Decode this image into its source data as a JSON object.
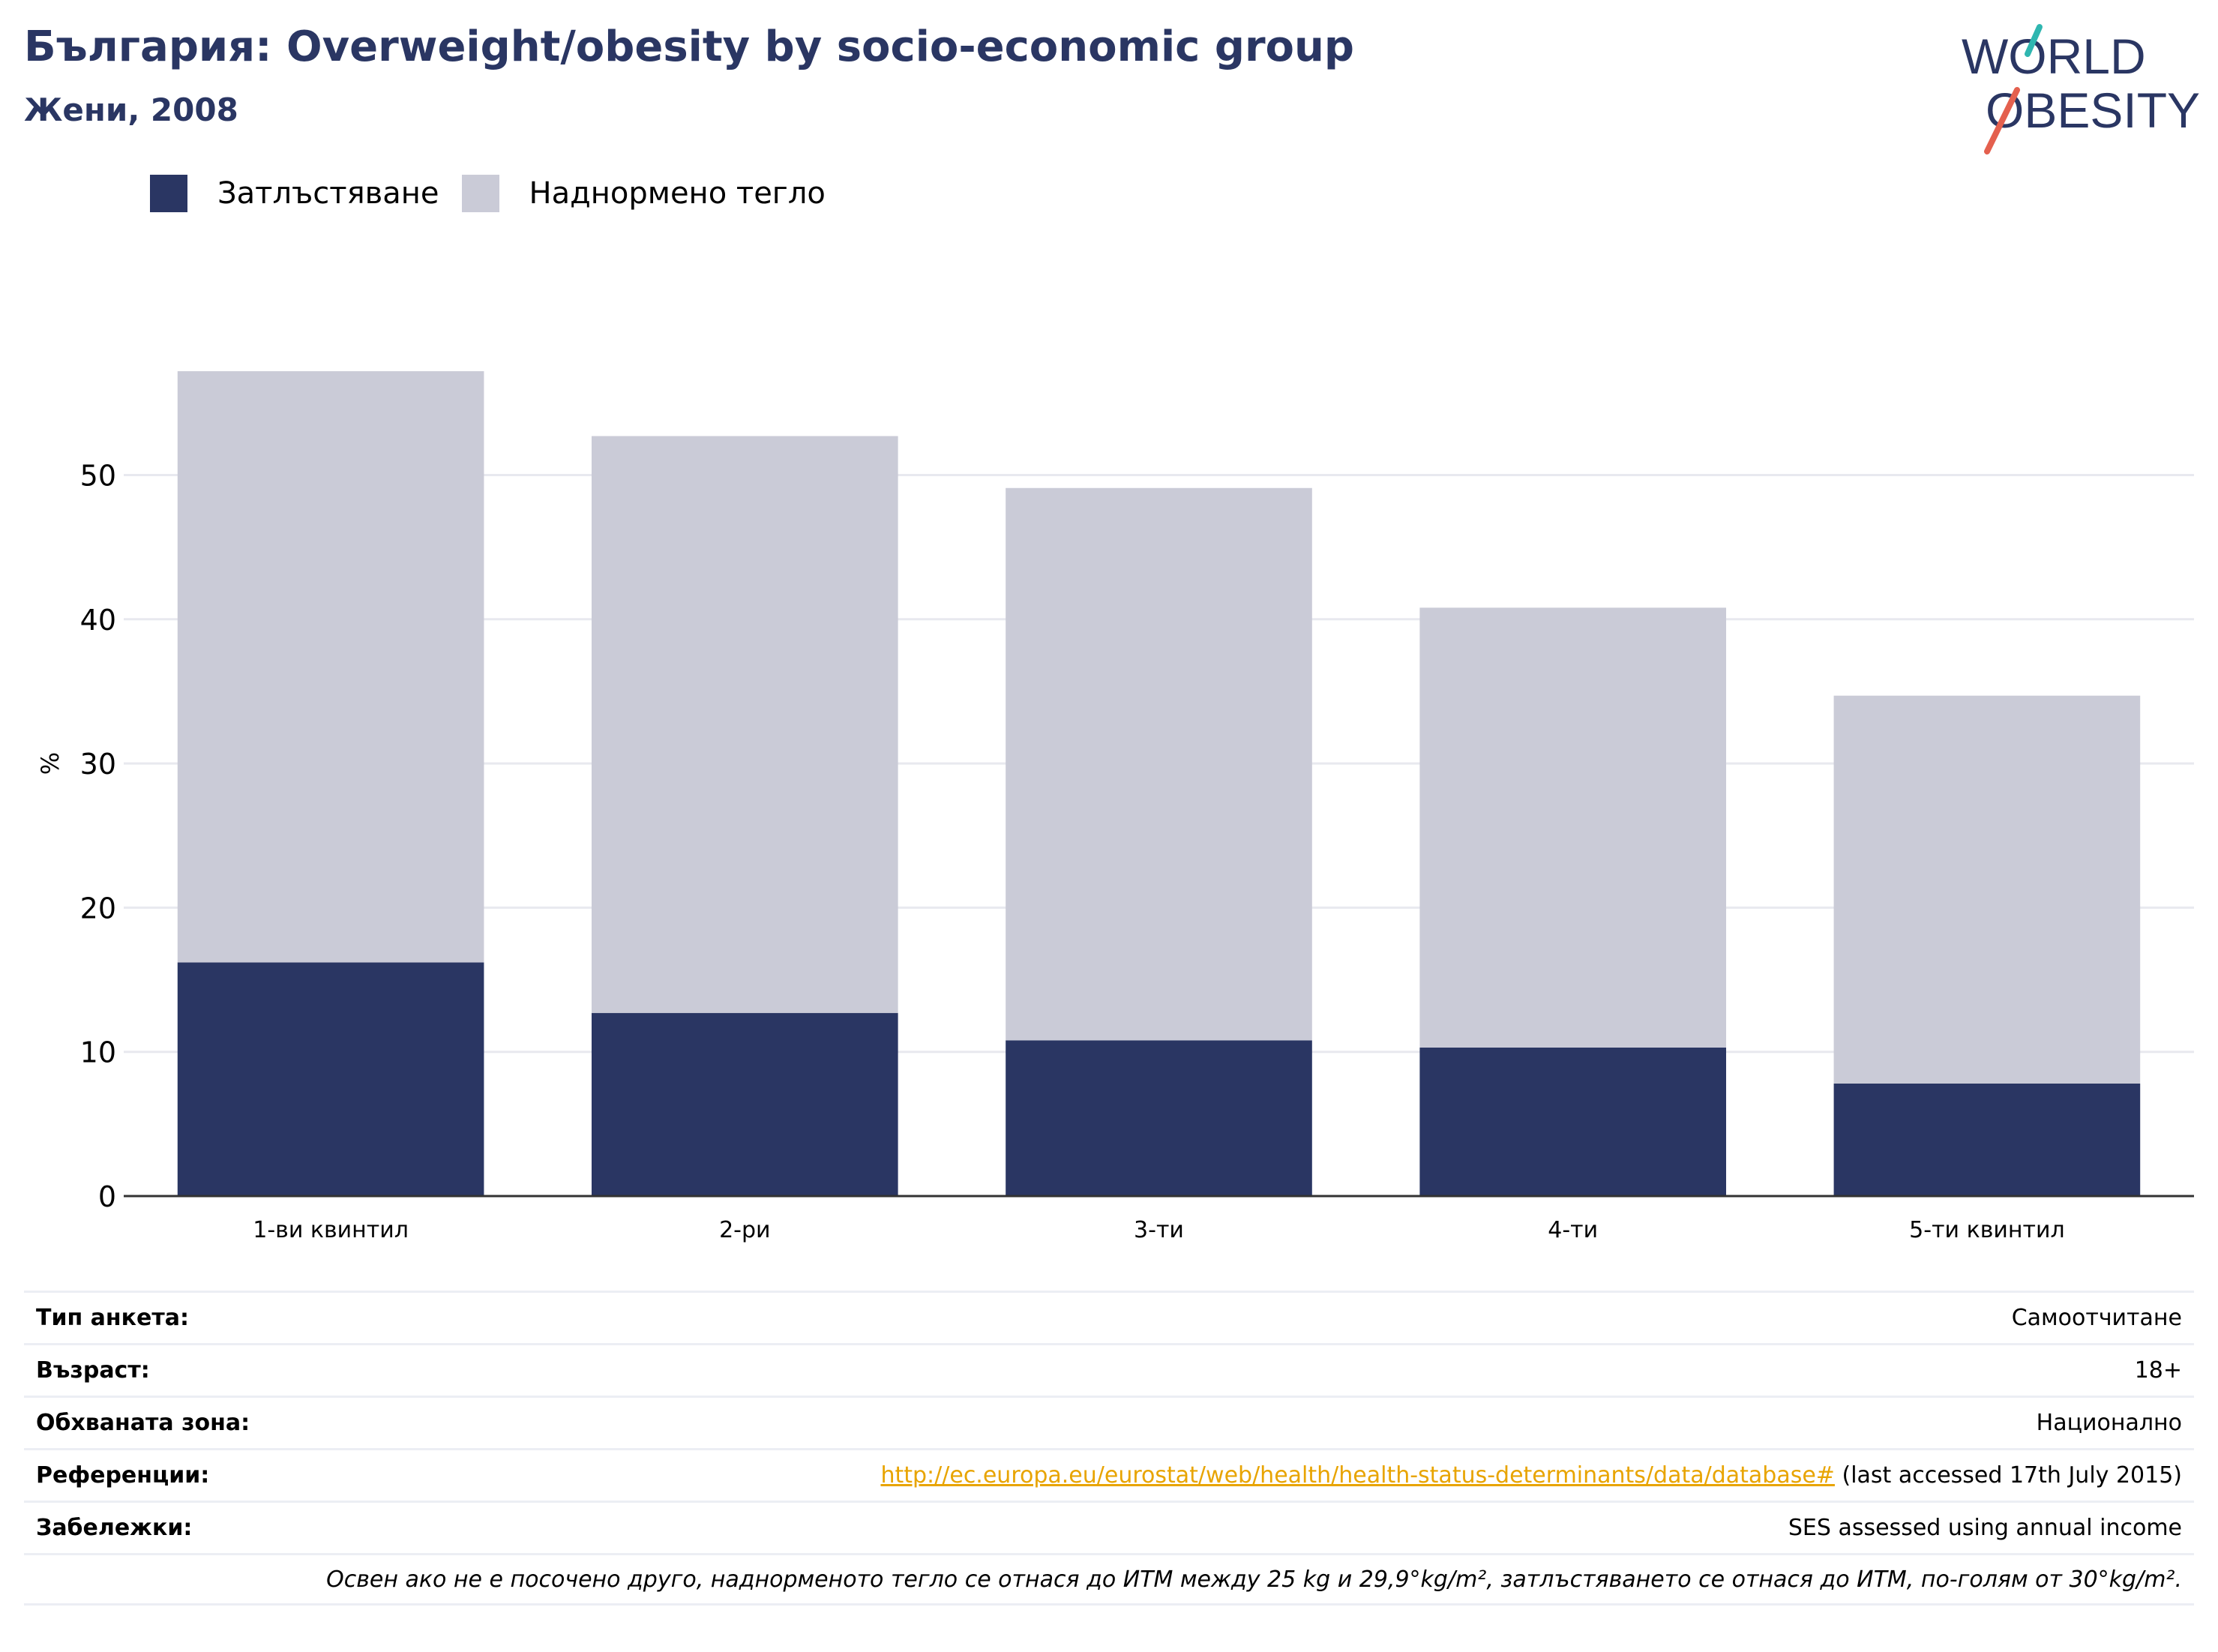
{
  "header": {
    "title": "България: Overweight/obesity by socio-economic group",
    "subtitle": "Жени, 2008"
  },
  "logo": {
    "line1": "WORLD",
    "line2": "OBESITY"
  },
  "colors": {
    "obesity": "#2a3663",
    "overweight": "#cacbd7",
    "accent_teal": "#2fb6b0",
    "accent_red": "#e4604e",
    "link": "#e8a400"
  },
  "chart_data": {
    "type": "bar",
    "stacked": true,
    "categories": [
      "1-ви квинтил",
      "2-ри",
      "3-ти",
      "4-ти",
      "5-ти квинтил"
    ],
    "series": [
      {
        "name": "Затлъстяване",
        "values": [
          16.2,
          12.7,
          10.8,
          10.3,
          7.8
        ]
      },
      {
        "name": "Наднормено тегло",
        "values": [
          41.0,
          40.0,
          38.3,
          30.5,
          26.9
        ]
      }
    ],
    "ylabel": "%",
    "xlabel": "",
    "ylim": [
      0,
      57.2
    ],
    "yticks": [
      0,
      10,
      20,
      30,
      40,
      50
    ],
    "grid": true,
    "legend_position": "top-left"
  },
  "info": {
    "survey_type_label": "Тип анкета:",
    "survey_type_value": "Самоотчитане",
    "age_label": "Възраст:",
    "age_value": "18+",
    "area_label": "Обхваната зона:",
    "area_value": "Национално",
    "references_label": "Референции:",
    "references_link": "http://ec.europa.eu/eurostat/web/health/health-status-determinants/data/database#",
    "references_note": " (last accessed 17th July 2015)",
    "notes_label": "Забележки:",
    "notes_value": "SES assessed using annual income",
    "footnote": "Освен ако не е посочено друго, наднорменото тегло се отнася до ИТМ между 25 kg и 29,9°kg/m², затлъстяването се отнася до ИТМ, по-голям от 30°kg/m²."
  }
}
